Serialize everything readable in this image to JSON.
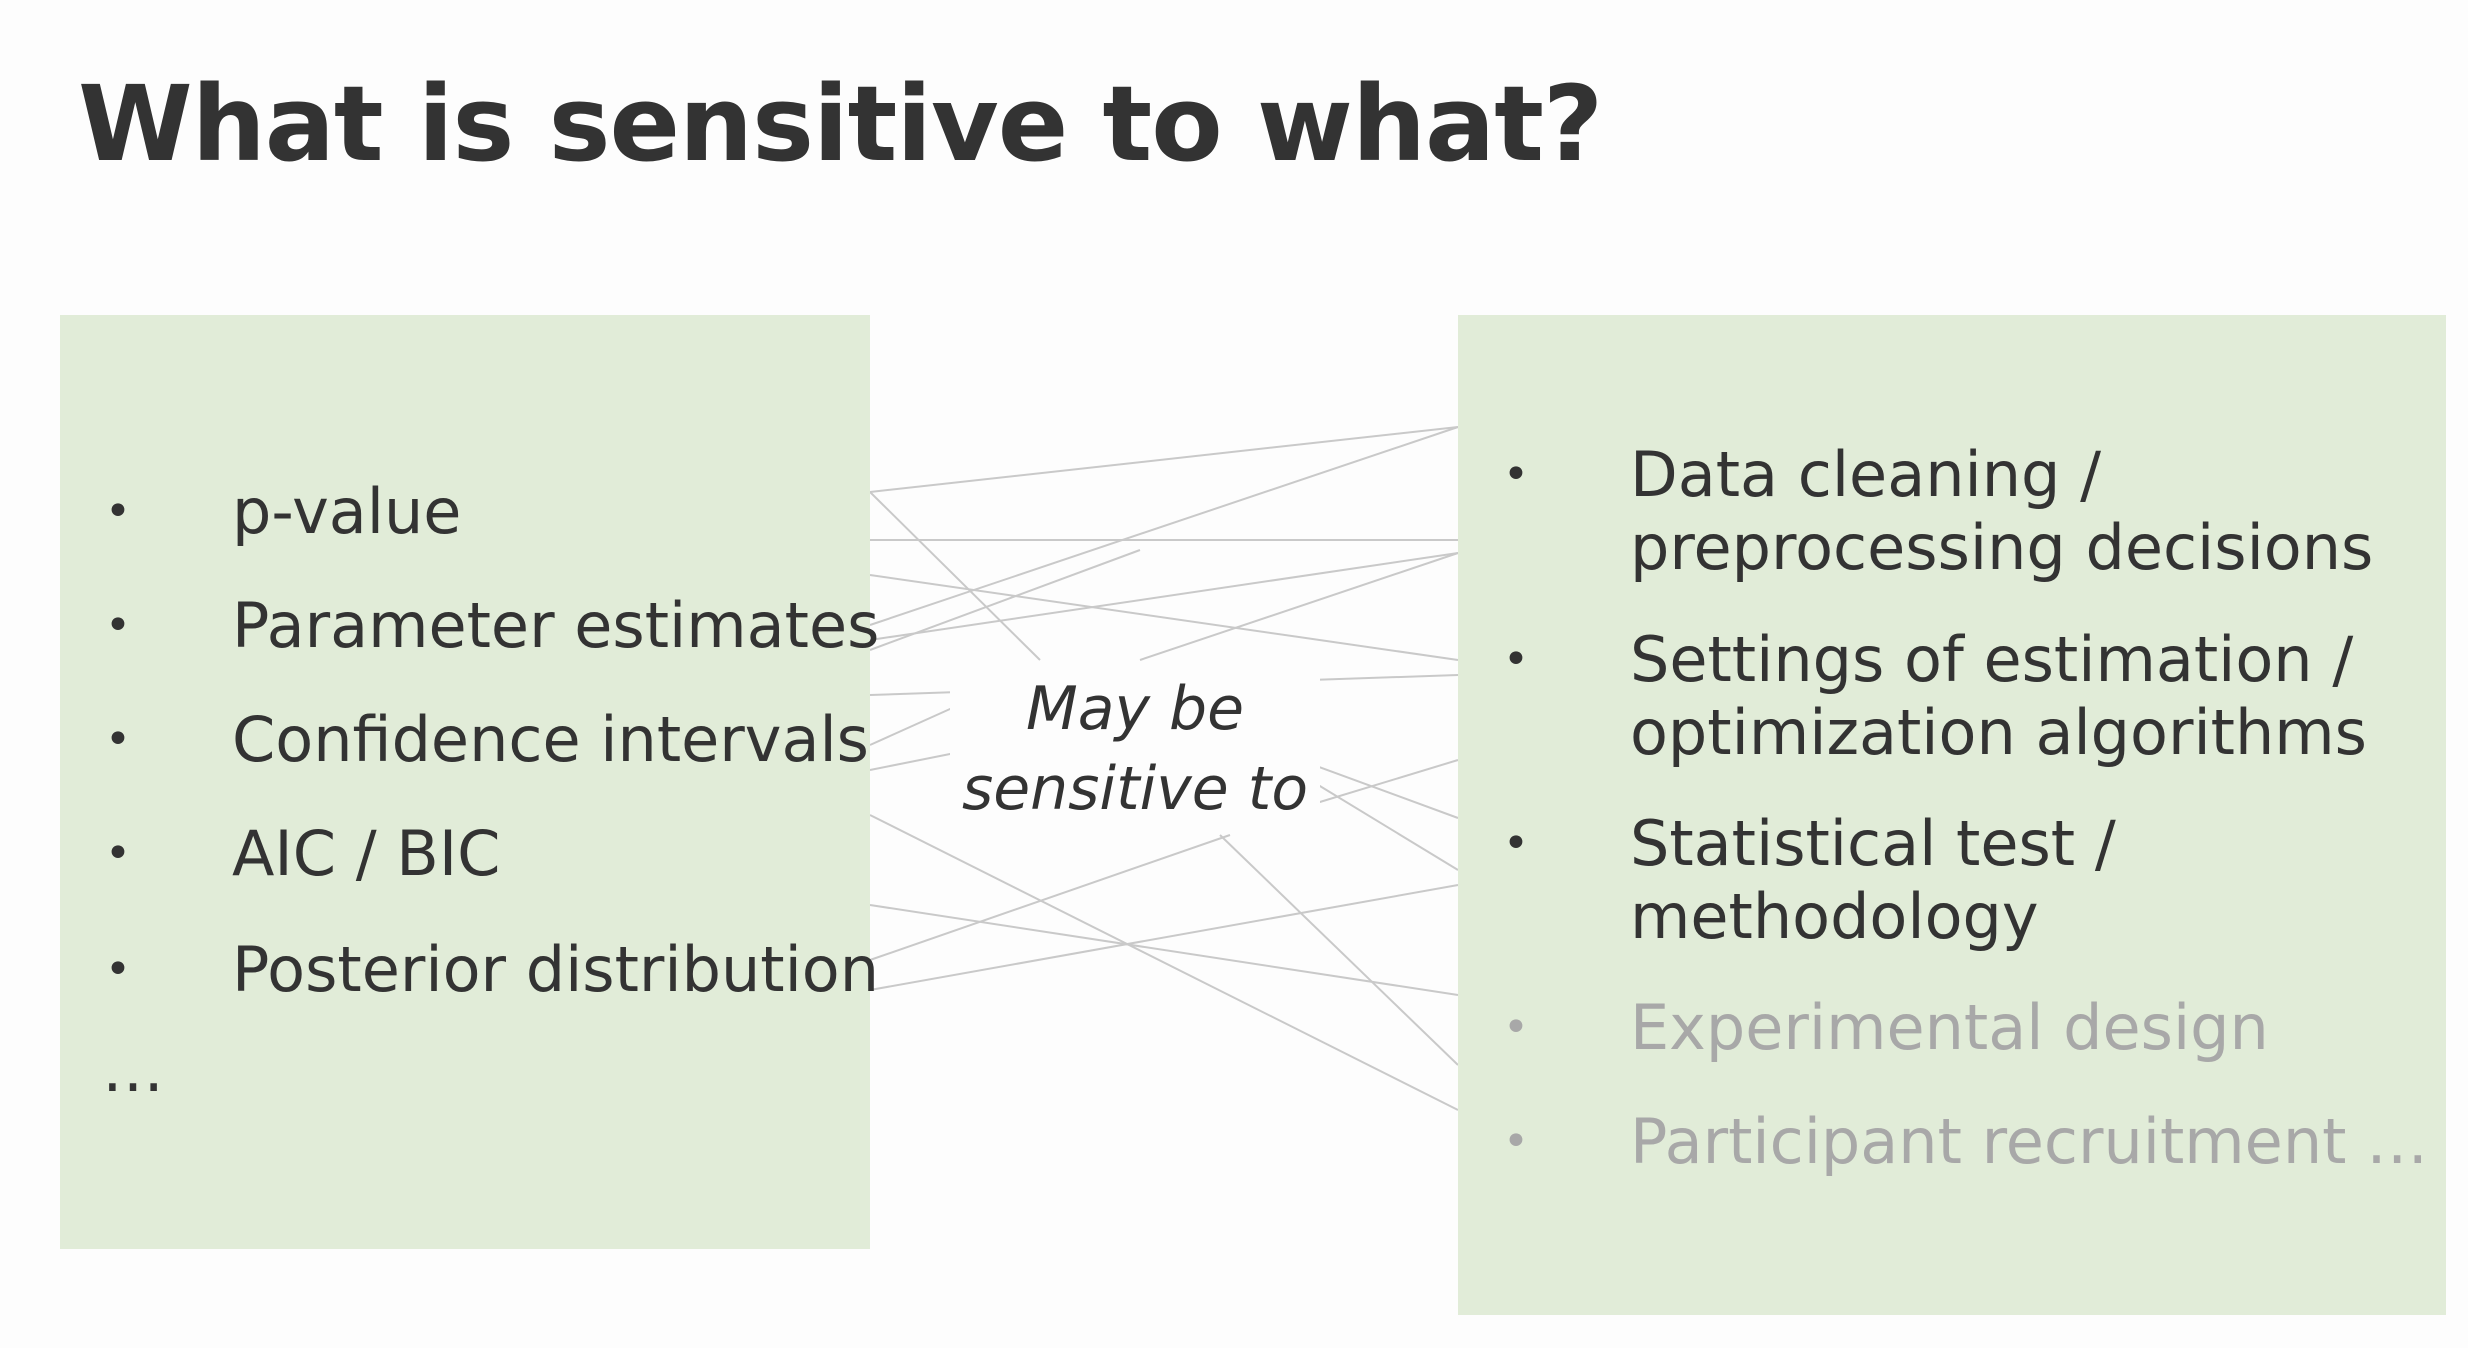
{
  "title": "What is sensitive to what?",
  "center_label": {
    "line1": "May be",
    "line2": "sensitive to"
  },
  "left_box": {
    "items": [
      "p-value",
      "Parameter estimates",
      "Confidence intervals",
      "AIC / BIC",
      "Posterior distribution"
    ],
    "ellipsis": "…"
  },
  "right_box": {
    "items": [
      {
        "line1": "Data cleaning /",
        "line2": "preprocessing decisions"
      },
      {
        "line1": "Settings of estimation /",
        "line2": "optimization algorithms"
      },
      {
        "line1": "Statistical test /",
        "line2": "methodology"
      }
    ],
    "faded_items": [
      "Experimental design",
      "Participant recruitment …"
    ]
  },
  "bullet_char": "•",
  "colors": {
    "box_fill": "#e1ecd8",
    "text": "#333333",
    "faded_text": "#a8a8a8",
    "connector_lines": "#c9c9c9"
  }
}
